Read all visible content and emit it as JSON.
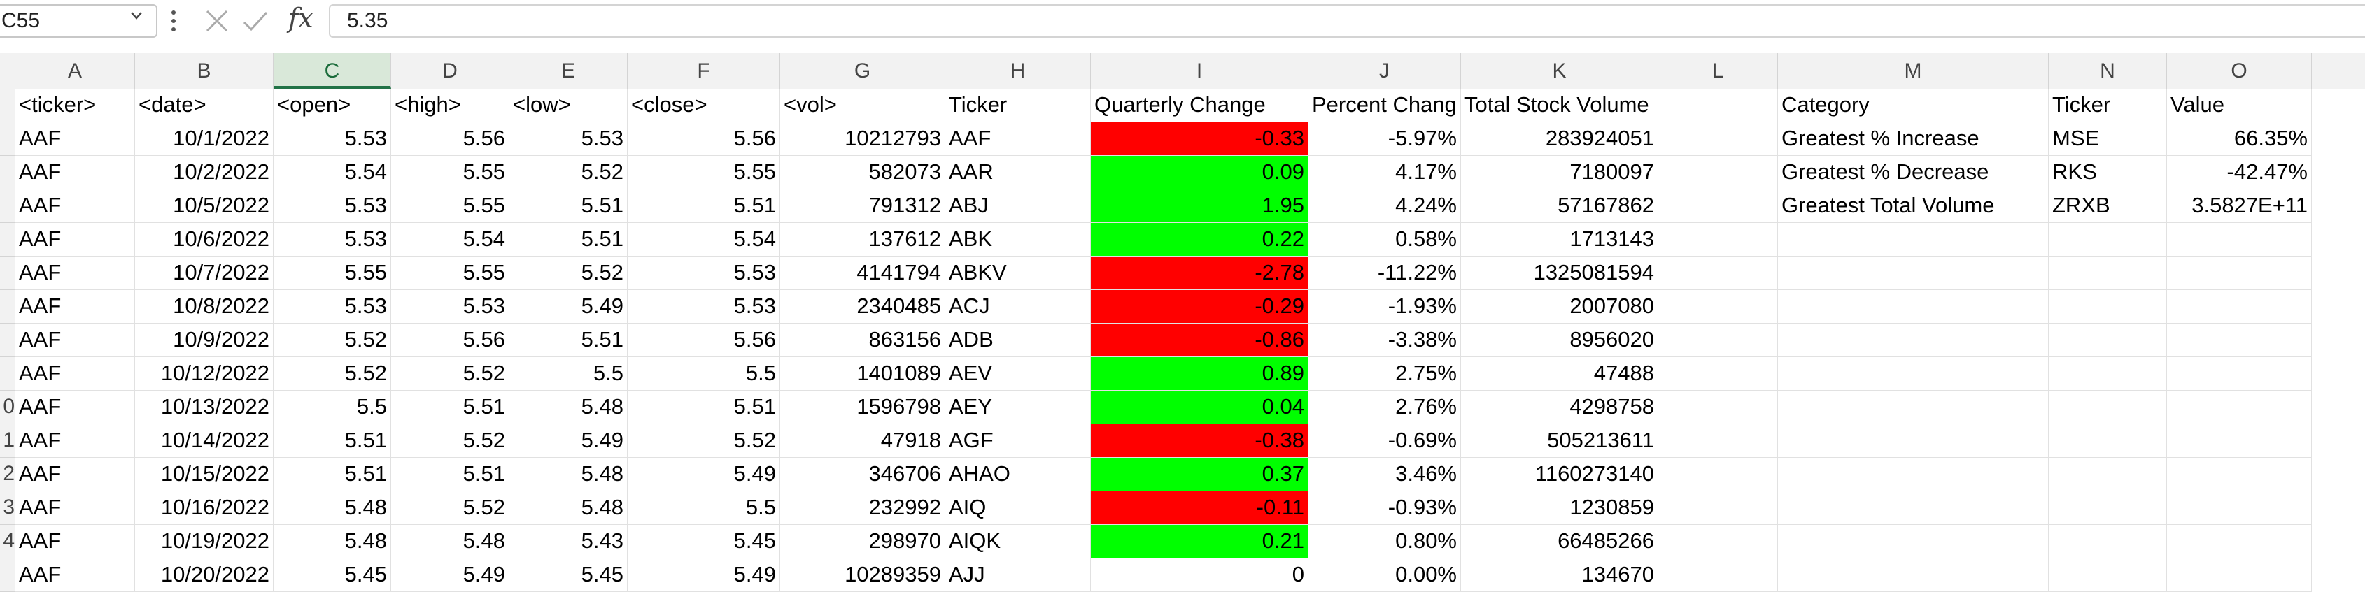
{
  "name_box": "C55",
  "fx_label": "fx",
  "formula_value": "5.35",
  "columns": [
    "A",
    "B",
    "C",
    "D",
    "E",
    "F",
    "G",
    "H",
    "I",
    "J",
    "K",
    "L",
    "M",
    "N",
    "O"
  ],
  "active_column": "C",
  "row_numbers": [
    "",
    "",
    "",
    "",
    "",
    "",
    "",
    "",
    "",
    "0",
    "1",
    "2",
    "3",
    "4",
    ""
  ],
  "header_row": [
    "<ticker>",
    "<date>",
    "<open>",
    "<high>",
    "<low>",
    "<close>",
    "<vol>",
    "Ticker",
    "Quarterly Change",
    "Percent Chang",
    "Total Stock Volume",
    "",
    "Category",
    "Ticker",
    "Value"
  ],
  "rows": [
    [
      "AAF",
      "10/1/2022",
      "5.53",
      "5.56",
      "5.53",
      "5.56",
      "10212793",
      "AAF",
      "-0.33",
      "-5.97%",
      "283924051",
      "",
      "Greatest % Increase",
      "MSE",
      "66.35%"
    ],
    [
      "AAF",
      "10/2/2022",
      "5.54",
      "5.55",
      "5.52",
      "5.55",
      "582073",
      "AAR",
      "0.09",
      "4.17%",
      "7180097",
      "",
      "Greatest % Decrease",
      "RKS",
      "-42.47%"
    ],
    [
      "AAF",
      "10/5/2022",
      "5.53",
      "5.55",
      "5.51",
      "5.51",
      "791312",
      "ABJ",
      "1.95",
      "4.24%",
      "57167862",
      "",
      "Greatest Total Volume",
      "ZRXB",
      "3.5827E+11"
    ],
    [
      "AAF",
      "10/6/2022",
      "5.53",
      "5.54",
      "5.51",
      "5.54",
      "137612",
      "ABK",
      "0.22",
      "0.58%",
      "1713143",
      "",
      "",
      "",
      ""
    ],
    [
      "AAF",
      "10/7/2022",
      "5.55",
      "5.55",
      "5.52",
      "5.53",
      "4141794",
      "ABKV",
      "-2.78",
      "-11.22%",
      "1325081594",
      "",
      "",
      "",
      ""
    ],
    [
      "AAF",
      "10/8/2022",
      "5.53",
      "5.53",
      "5.49",
      "5.53",
      "2340485",
      "ACJ",
      "-0.29",
      "-1.93%",
      "2007080",
      "",
      "",
      "",
      ""
    ],
    [
      "AAF",
      "10/9/2022",
      "5.52",
      "5.56",
      "5.51",
      "5.56",
      "863156",
      "ADB",
      "-0.86",
      "-3.38%",
      "8956020",
      "",
      "",
      "",
      ""
    ],
    [
      "AAF",
      "10/12/2022",
      "5.52",
      "5.52",
      "5.5",
      "5.5",
      "1401089",
      "AEV",
      "0.89",
      "2.75%",
      "47488",
      "",
      "",
      "",
      ""
    ],
    [
      "AAF",
      "10/13/2022",
      "5.5",
      "5.51",
      "5.48",
      "5.51",
      "1596798",
      "AEY",
      "0.04",
      "2.76%",
      "4298758",
      "",
      "",
      "",
      ""
    ],
    [
      "AAF",
      "10/14/2022",
      "5.51",
      "5.52",
      "5.49",
      "5.52",
      "47918",
      "AGF",
      "-0.38",
      "-0.69%",
      "505213611",
      "",
      "",
      "",
      ""
    ],
    [
      "AAF",
      "10/15/2022",
      "5.51",
      "5.51",
      "5.48",
      "5.49",
      "346706",
      "AHAO",
      "0.37",
      "3.46%",
      "1160273140",
      "",
      "",
      "",
      ""
    ],
    [
      "AAF",
      "10/16/2022",
      "5.48",
      "5.52",
      "5.48",
      "5.5",
      "232992",
      "AIQ",
      "-0.11",
      "-0.93%",
      "1230859",
      "",
      "",
      "",
      ""
    ],
    [
      "AAF",
      "10/19/2022",
      "5.48",
      "5.48",
      "5.43",
      "5.45",
      "298970",
      "AIQK",
      "0.21",
      "0.80%",
      "66485266",
      "",
      "",
      "",
      ""
    ],
    [
      "AAF",
      "10/20/2022",
      "5.45",
      "5.49",
      "5.45",
      "5.49",
      "10289359",
      "AJJ",
      "0",
      "0.00%",
      "134670",
      "",
      "",
      "",
      ""
    ]
  ],
  "fills": {
    "negative": "#ff0000",
    "positive": "#00ff00"
  }
}
